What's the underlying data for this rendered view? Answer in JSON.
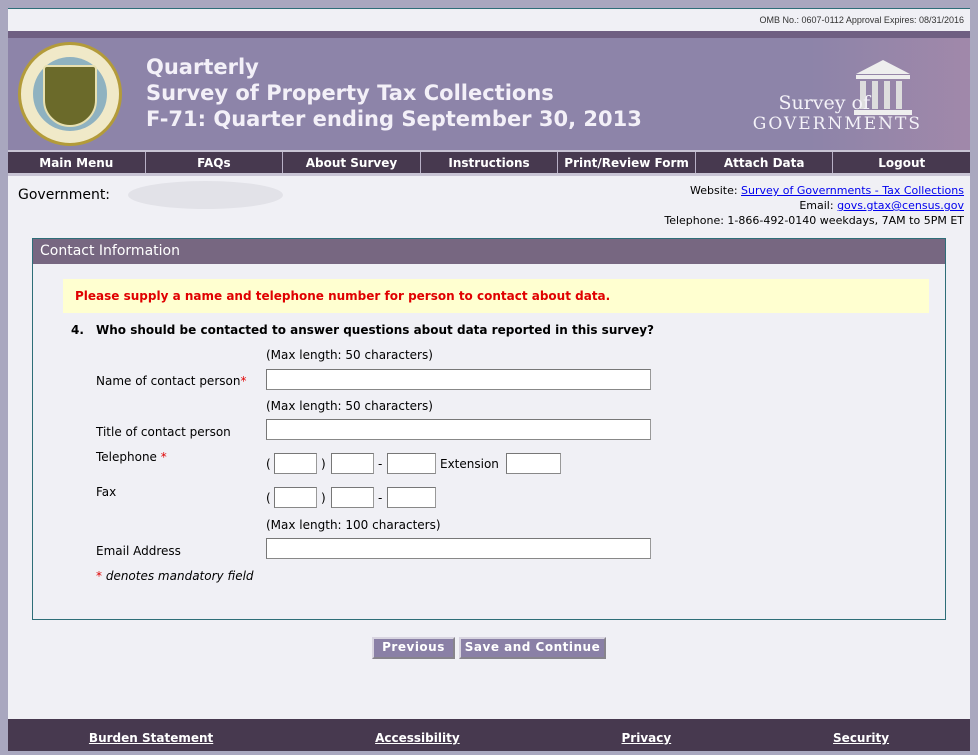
{
  "header": {
    "omb": "OMB No.: 0607-0112 Approval Expires: 08/31/2016",
    "title_lines": [
      "Quarterly",
      "Survey of Property Tax Collections",
      "F-71: Quarter ending September 30, 2013"
    ],
    "logo_text": {
      "line1": "Survey of",
      "line2": "GOVERNMENTS"
    },
    "seal_text": "U.S. DEPARTMENT OF COMMERCE BUREAU OF THE CENSUS"
  },
  "nav": [
    "Main Menu",
    "FAQs",
    "About Survey",
    "Instructions",
    "Print/Review Form",
    "Attach Data",
    "Logout"
  ],
  "info": {
    "government_label": "Government:",
    "website_label": "Website:",
    "website_link": "Survey of Governments - Tax Collections",
    "email_label": "Email:",
    "email_link": "govs.gtax@census.gov",
    "telephone": "Telephone: 1-866-492-0140 weekdays, 7AM to 5PM ET"
  },
  "panel": {
    "title": "Contact Information",
    "warning": "Please supply a name and telephone number for person to contact about data.",
    "question_number": "4.",
    "question": "Who should be contacted to answer questions about data reported in this survey?",
    "max50": "(Max length: 50 characters)",
    "max100": "(Max length: 100 characters)",
    "name_label": "Name of contact person",
    "title_label": "Title of contact person",
    "telephone_label": "Telephone",
    "fax_label": "Fax",
    "email_label": "Email Address",
    "extension_label": "Extension",
    "asterisk": "*",
    "mandatory_note": "denotes mandatory field",
    "open_paren": "(",
    "close_paren": ")",
    "dash": "-"
  },
  "buttons": {
    "previous": "Previous",
    "save": "Save and Continue"
  },
  "footer": [
    "Burden Statement",
    "Accessibility",
    "Privacy",
    "Security"
  ],
  "colors": {
    "nav": "#47394f",
    "banner": "#8d84a9",
    "panel_header": "#776781",
    "warning": "#e00000"
  }
}
